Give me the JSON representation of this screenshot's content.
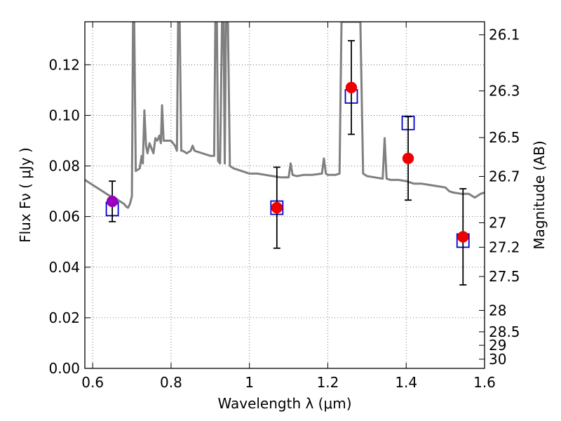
{
  "chart_data": {
    "type": "scatter",
    "xlabel": "Wavelength  λ (μm)",
    "ylabel": "Flux  Fν  ( μJy )",
    "y2label": "Magnitude (AB)",
    "xlim": [
      0.58,
      1.6
    ],
    "ylim": [
      0.0,
      0.137
    ],
    "grid": true,
    "x_ticks": [
      {
        "value": 0.6,
        "label": "0.6"
      },
      {
        "value": 0.8,
        "label": "0.8"
      },
      {
        "value": 1.0,
        "label": "1"
      },
      {
        "value": 1.2,
        "label": "1.2"
      },
      {
        "value": 1.4,
        "label": "1.4"
      },
      {
        "value": 1.6,
        "label": "1.6"
      }
    ],
    "y_ticks": [
      {
        "value": 0.0,
        "label": "0.00"
      },
      {
        "value": 0.02,
        "label": "0.02"
      },
      {
        "value": 0.04,
        "label": "0.04"
      },
      {
        "value": 0.06,
        "label": "0.06"
      },
      {
        "value": 0.08,
        "label": "0.08"
      },
      {
        "value": 0.1,
        "label": "0.10"
      },
      {
        "value": 0.12,
        "label": "0.12"
      }
    ],
    "y2_ticks": [
      {
        "value": 26.1,
        "label": "26.1"
      },
      {
        "value": 26.3,
        "label": "26.3"
      },
      {
        "value": 26.5,
        "label": "26.5"
      },
      {
        "value": 26.7,
        "label": "26.7"
      },
      {
        "value": 27.0,
        "label": "27"
      },
      {
        "value": 27.2,
        "label": "27.2"
      },
      {
        "value": 27.5,
        "label": "27.5"
      },
      {
        "value": 28.0,
        "label": "28"
      },
      {
        "value": 28.5,
        "label": "28.5"
      },
      {
        "value": 29.0,
        "label": "29"
      },
      {
        "value": 30.0,
        "label": "30"
      }
    ],
    "model_spectrum": {
      "color": "#808080",
      "points": [
        [
          0.58,
          0.0745
        ],
        [
          0.6,
          0.0725
        ],
        [
          0.62,
          0.0705
        ],
        [
          0.64,
          0.0685
        ],
        [
          0.66,
          0.067
        ],
        [
          0.68,
          0.065
        ],
        [
          0.685,
          0.064
        ],
        [
          0.69,
          0.0635
        ],
        [
          0.695,
          0.065
        ],
        [
          0.7,
          0.068
        ],
        [
          0.703,
          0.137
        ],
        [
          0.706,
          0.137
        ],
        [
          0.71,
          0.078
        ],
        [
          0.72,
          0.079
        ],
        [
          0.725,
          0.084
        ],
        [
          0.728,
          0.081
        ],
        [
          0.732,
          0.102
        ],
        [
          0.736,
          0.088
        ],
        [
          0.74,
          0.085
        ],
        [
          0.745,
          0.089
        ],
        [
          0.75,
          0.087
        ],
        [
          0.755,
          0.085
        ],
        [
          0.76,
          0.091
        ],
        [
          0.765,
          0.09
        ],
        [
          0.77,
          0.092
        ],
        [
          0.774,
          0.089
        ],
        [
          0.777,
          0.104
        ],
        [
          0.781,
          0.09
        ],
        [
          0.79,
          0.09
        ],
        [
          0.8,
          0.09
        ],
        [
          0.81,
          0.088
        ],
        [
          0.815,
          0.086
        ],
        [
          0.818,
          0.137
        ],
        [
          0.822,
          0.137
        ],
        [
          0.826,
          0.086
        ],
        [
          0.83,
          0.086
        ],
        [
          0.84,
          0.085
        ],
        [
          0.85,
          0.086
        ],
        [
          0.855,
          0.088
        ],
        [
          0.86,
          0.086
        ],
        [
          0.88,
          0.085
        ],
        [
          0.9,
          0.084
        ],
        [
          0.91,
          0.084
        ],
        [
          0.913,
          0.137
        ],
        [
          0.917,
          0.137
        ],
        [
          0.92,
          0.082
        ],
        [
          0.925,
          0.081
        ],
        [
          0.93,
          0.137
        ],
        [
          0.934,
          0.137
        ],
        [
          0.937,
          0.081
        ],
        [
          0.94,
          0.137
        ],
        [
          0.945,
          0.137
        ],
        [
          0.95,
          0.08
        ],
        [
          0.96,
          0.079
        ],
        [
          0.98,
          0.078
        ],
        [
          1.0,
          0.077
        ],
        [
          1.02,
          0.077
        ],
        [
          1.04,
          0.0765
        ],
        [
          1.06,
          0.076
        ],
        [
          1.08,
          0.0755
        ],
        [
          1.1,
          0.0755
        ],
        [
          1.105,
          0.081
        ],
        [
          1.11,
          0.0765
        ],
        [
          1.12,
          0.076
        ],
        [
          1.14,
          0.0765
        ],
        [
          1.16,
          0.0765
        ],
        [
          1.185,
          0.077
        ],
        [
          1.19,
          0.083
        ],
        [
          1.195,
          0.077
        ],
        [
          1.2,
          0.0765
        ],
        [
          1.22,
          0.0765
        ],
        [
          1.23,
          0.077
        ],
        [
          1.235,
          0.137
        ],
        [
          1.283,
          0.137
        ],
        [
          1.29,
          0.077
        ],
        [
          1.3,
          0.076
        ],
        [
          1.32,
          0.0755
        ],
        [
          1.34,
          0.075
        ],
        [
          1.345,
          0.091
        ],
        [
          1.35,
          0.075
        ],
        [
          1.36,
          0.0745
        ],
        [
          1.38,
          0.0745
        ],
        [
          1.4,
          0.074
        ],
        [
          1.42,
          0.073
        ],
        [
          1.44,
          0.073
        ],
        [
          1.46,
          0.0725
        ],
        [
          1.48,
          0.072
        ],
        [
          1.5,
          0.0715
        ],
        [
          1.51,
          0.07
        ],
        [
          1.52,
          0.0695
        ],
        [
          1.54,
          0.069
        ],
        [
          1.56,
          0.069
        ],
        [
          1.575,
          0.0675
        ],
        [
          1.59,
          0.069
        ],
        [
          1.6,
          0.0695
        ]
      ]
    },
    "series": [
      {
        "marker": "open-square",
        "color": "#0000cc",
        "points": [
          {
            "x": 0.65,
            "y": 0.063
          },
          {
            "x": 1.07,
            "y": 0.0635
          },
          {
            "x": 1.26,
            "y": 0.1075
          },
          {
            "x": 1.405,
            "y": 0.097
          },
          {
            "x": 1.545,
            "y": 0.0505
          }
        ]
      },
      {
        "marker": "filled-circle",
        "points": [
          {
            "x": 0.65,
            "y": 0.066,
            "yerr": 0.008,
            "color": "#9900bb"
          },
          {
            "x": 1.07,
            "y": 0.0635,
            "yerr": 0.016,
            "color": "#ee0000"
          },
          {
            "x": 1.26,
            "y": 0.111,
            "yerr": 0.0185,
            "color": "#ee0000"
          },
          {
            "x": 1.405,
            "y": 0.083,
            "yerr": 0.0165,
            "color": "#ee0000"
          },
          {
            "x": 1.545,
            "y": 0.052,
            "yerr": 0.019,
            "color": "#ee0000"
          }
        ]
      }
    ]
  }
}
